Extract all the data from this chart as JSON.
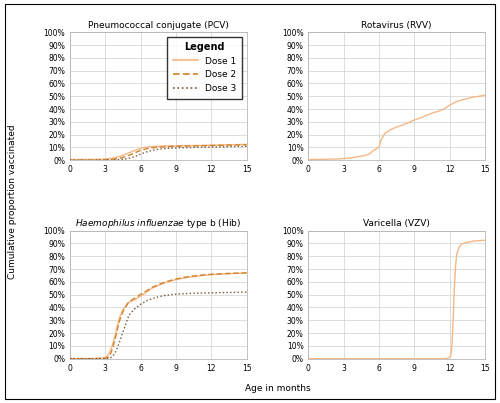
{
  "titles": [
    "Pneumococcal conjugate (PCV)",
    "Rotavirus (RVV)",
    "Haemophilus influenzae type b (Hib)",
    "Varicella (VZV)"
  ],
  "ylabel": "Cumulative proportion vaccinated",
  "xlabel": "Age in months",
  "xlim": [
    0,
    15
  ],
  "xticks": [
    0,
    3,
    6,
    9,
    12,
    15
  ],
  "ytick_labels": [
    "0%",
    "10%",
    "20%",
    "30%",
    "40%",
    "50%",
    "60%",
    "70%",
    "80%",
    "90%",
    "100%"
  ],
  "yticks": [
    0,
    0.1,
    0.2,
    0.3,
    0.4,
    0.5,
    0.6,
    0.7,
    0.8,
    0.9,
    1.0
  ],
  "ylim": [
    0,
    1.0
  ],
  "dose1_color": "#f5b885",
  "dose2_color": "#d2822a",
  "dose3_color": "#7a5530",
  "grid_color": "#d0d0d0",
  "bg_color": "#ffffff",
  "pcv_dose1_x": [
    0,
    0.5,
    1,
    1.5,
    2,
    2.5,
    3,
    3.5,
    4,
    4.5,
    5,
    5.5,
    6,
    6.5,
    7,
    7.5,
    8,
    8.5,
    9,
    9.5,
    10,
    10.5,
    11,
    11.5,
    12,
    12.5,
    13,
    13.5,
    14,
    14.5,
    15
  ],
  "pcv_dose1_y": [
    0.005,
    0.005,
    0.006,
    0.006,
    0.007,
    0.008,
    0.01,
    0.015,
    0.025,
    0.04,
    0.058,
    0.077,
    0.093,
    0.103,
    0.108,
    0.11,
    0.112,
    0.113,
    0.113,
    0.114,
    0.115,
    0.115,
    0.116,
    0.117,
    0.118,
    0.119,
    0.12,
    0.121,
    0.122,
    0.123,
    0.124
  ],
  "pcv_dose2_x": [
    0,
    0.5,
    1,
    1.5,
    2,
    2.5,
    3,
    3.5,
    4,
    4.5,
    5,
    5.5,
    6,
    6.5,
    7,
    7.5,
    8,
    8.5,
    9,
    9.5,
    10,
    10.5,
    11,
    11.5,
    12,
    12.5,
    13,
    13.5,
    14,
    14.5,
    15
  ],
  "pcv_dose2_y": [
    0.001,
    0.001,
    0.001,
    0.001,
    0.002,
    0.002,
    0.003,
    0.006,
    0.012,
    0.022,
    0.038,
    0.058,
    0.077,
    0.09,
    0.097,
    0.102,
    0.105,
    0.107,
    0.109,
    0.11,
    0.111,
    0.112,
    0.113,
    0.114,
    0.115,
    0.116,
    0.117,
    0.118,
    0.119,
    0.12,
    0.121
  ],
  "pcv_dose3_x": [
    0,
    0.5,
    1,
    1.5,
    2,
    2.5,
    3,
    3.5,
    4,
    4.5,
    5,
    5.5,
    6,
    6.5,
    7,
    7.5,
    8,
    8.5,
    9,
    9.5,
    10,
    10.5,
    11,
    11.5,
    12,
    12.5,
    13,
    13.5,
    14,
    14.5,
    15
  ],
  "pcv_dose3_y": [
    0.0,
    0.0,
    0.0,
    0.0,
    0.0,
    0.001,
    0.001,
    0.002,
    0.004,
    0.008,
    0.015,
    0.028,
    0.048,
    0.065,
    0.078,
    0.086,
    0.091,
    0.094,
    0.096,
    0.098,
    0.099,
    0.1,
    0.101,
    0.102,
    0.103,
    0.104,
    0.105,
    0.106,
    0.107,
    0.108,
    0.109
  ],
  "rvv_dose1_x": [
    0,
    0.5,
    1,
    1.5,
    2,
    2.5,
    3,
    3.5,
    4,
    4.5,
    5,
    5.0,
    5.2,
    5.5,
    5.8,
    6,
    6.2,
    6.5,
    7,
    7.5,
    8,
    8.5,
    9,
    9.5,
    10,
    10.5,
    11,
    11.5,
    12,
    12.5,
    13,
    13.5,
    14,
    14.5,
    15
  ],
  "rvv_dose1_y": [
    0.005,
    0.006,
    0.007,
    0.008,
    0.009,
    0.01,
    0.013,
    0.017,
    0.025,
    0.032,
    0.042,
    0.042,
    0.05,
    0.075,
    0.09,
    0.105,
    0.165,
    0.21,
    0.24,
    0.26,
    0.275,
    0.295,
    0.315,
    0.33,
    0.35,
    0.368,
    0.382,
    0.4,
    0.43,
    0.455,
    0.47,
    0.482,
    0.493,
    0.5,
    0.508
  ],
  "hib_dose1_x": [
    0,
    1,
    2,
    2.5,
    3,
    3.2,
    3.4,
    3.6,
    3.8,
    4,
    4.2,
    4.5,
    4.8,
    5,
    5.5,
    6,
    6.5,
    7,
    7.5,
    8,
    8.5,
    9,
    9.5,
    10,
    10.5,
    11,
    11.5,
    12,
    12.5,
    13,
    13.5,
    14,
    14.5,
    15
  ],
  "hib_dose1_y": [
    0.0,
    0.0,
    0.001,
    0.003,
    0.01,
    0.022,
    0.055,
    0.105,
    0.17,
    0.25,
    0.32,
    0.385,
    0.42,
    0.44,
    0.46,
    0.49,
    0.52,
    0.552,
    0.572,
    0.59,
    0.605,
    0.617,
    0.627,
    0.635,
    0.641,
    0.647,
    0.652,
    0.656,
    0.659,
    0.662,
    0.664,
    0.666,
    0.668,
    0.67
  ],
  "hib_dose2_x": [
    0,
    1,
    2,
    2.5,
    3,
    3.2,
    3.4,
    3.6,
    3.8,
    4,
    4.2,
    4.5,
    4.8,
    5,
    5.5,
    6,
    6.5,
    7,
    7.5,
    8,
    8.5,
    9,
    9.5,
    10,
    10.5,
    11,
    11.5,
    12,
    12.5,
    13,
    13.5,
    14,
    14.5,
    15
  ],
  "hib_dose2_y": [
    0.0,
    0.0,
    0.0,
    0.001,
    0.003,
    0.01,
    0.028,
    0.075,
    0.14,
    0.22,
    0.295,
    0.368,
    0.415,
    0.445,
    0.472,
    0.502,
    0.53,
    0.558,
    0.578,
    0.596,
    0.61,
    0.622,
    0.632,
    0.64,
    0.646,
    0.651,
    0.655,
    0.659,
    0.661,
    0.664,
    0.666,
    0.667,
    0.669,
    0.67
  ],
  "hib_dose3_x": [
    0,
    1,
    2,
    2.5,
    3,
    3.2,
    3.4,
    3.6,
    3.8,
    4,
    4.2,
    4.5,
    4.8,
    5,
    5.5,
    6,
    6.5,
    7,
    7.5,
    8,
    8.5,
    9,
    9.5,
    10,
    10.5,
    11,
    11.5,
    12,
    12.5,
    13,
    13.5,
    14,
    14.5,
    15
  ],
  "hib_dose3_y": [
    0.0,
    0.0,
    0.0,
    0.0,
    0.001,
    0.002,
    0.006,
    0.015,
    0.04,
    0.08,
    0.13,
    0.21,
    0.285,
    0.34,
    0.39,
    0.425,
    0.452,
    0.47,
    0.483,
    0.493,
    0.499,
    0.504,
    0.507,
    0.509,
    0.511,
    0.512,
    0.513,
    0.514,
    0.515,
    0.516,
    0.517,
    0.518,
    0.519,
    0.52
  ],
  "vzv_dose1_x": [
    0,
    1,
    2,
    3,
    4,
    5,
    6,
    7,
    8,
    9,
    10,
    11,
    11.5,
    11.8,
    12.0,
    12.1,
    12.2,
    12.3,
    12.4,
    12.5,
    12.6,
    12.8,
    13,
    13.5,
    14,
    14.5,
    15
  ],
  "vzv_dose1_y": [
    0.0,
    0.0,
    0.0,
    0.0,
    0.0,
    0.0,
    0.0,
    0.0,
    0.0,
    0.0,
    0.0,
    0.0,
    0.0,
    0.002,
    0.01,
    0.03,
    0.12,
    0.33,
    0.56,
    0.72,
    0.82,
    0.87,
    0.895,
    0.91,
    0.918,
    0.922,
    0.925
  ]
}
